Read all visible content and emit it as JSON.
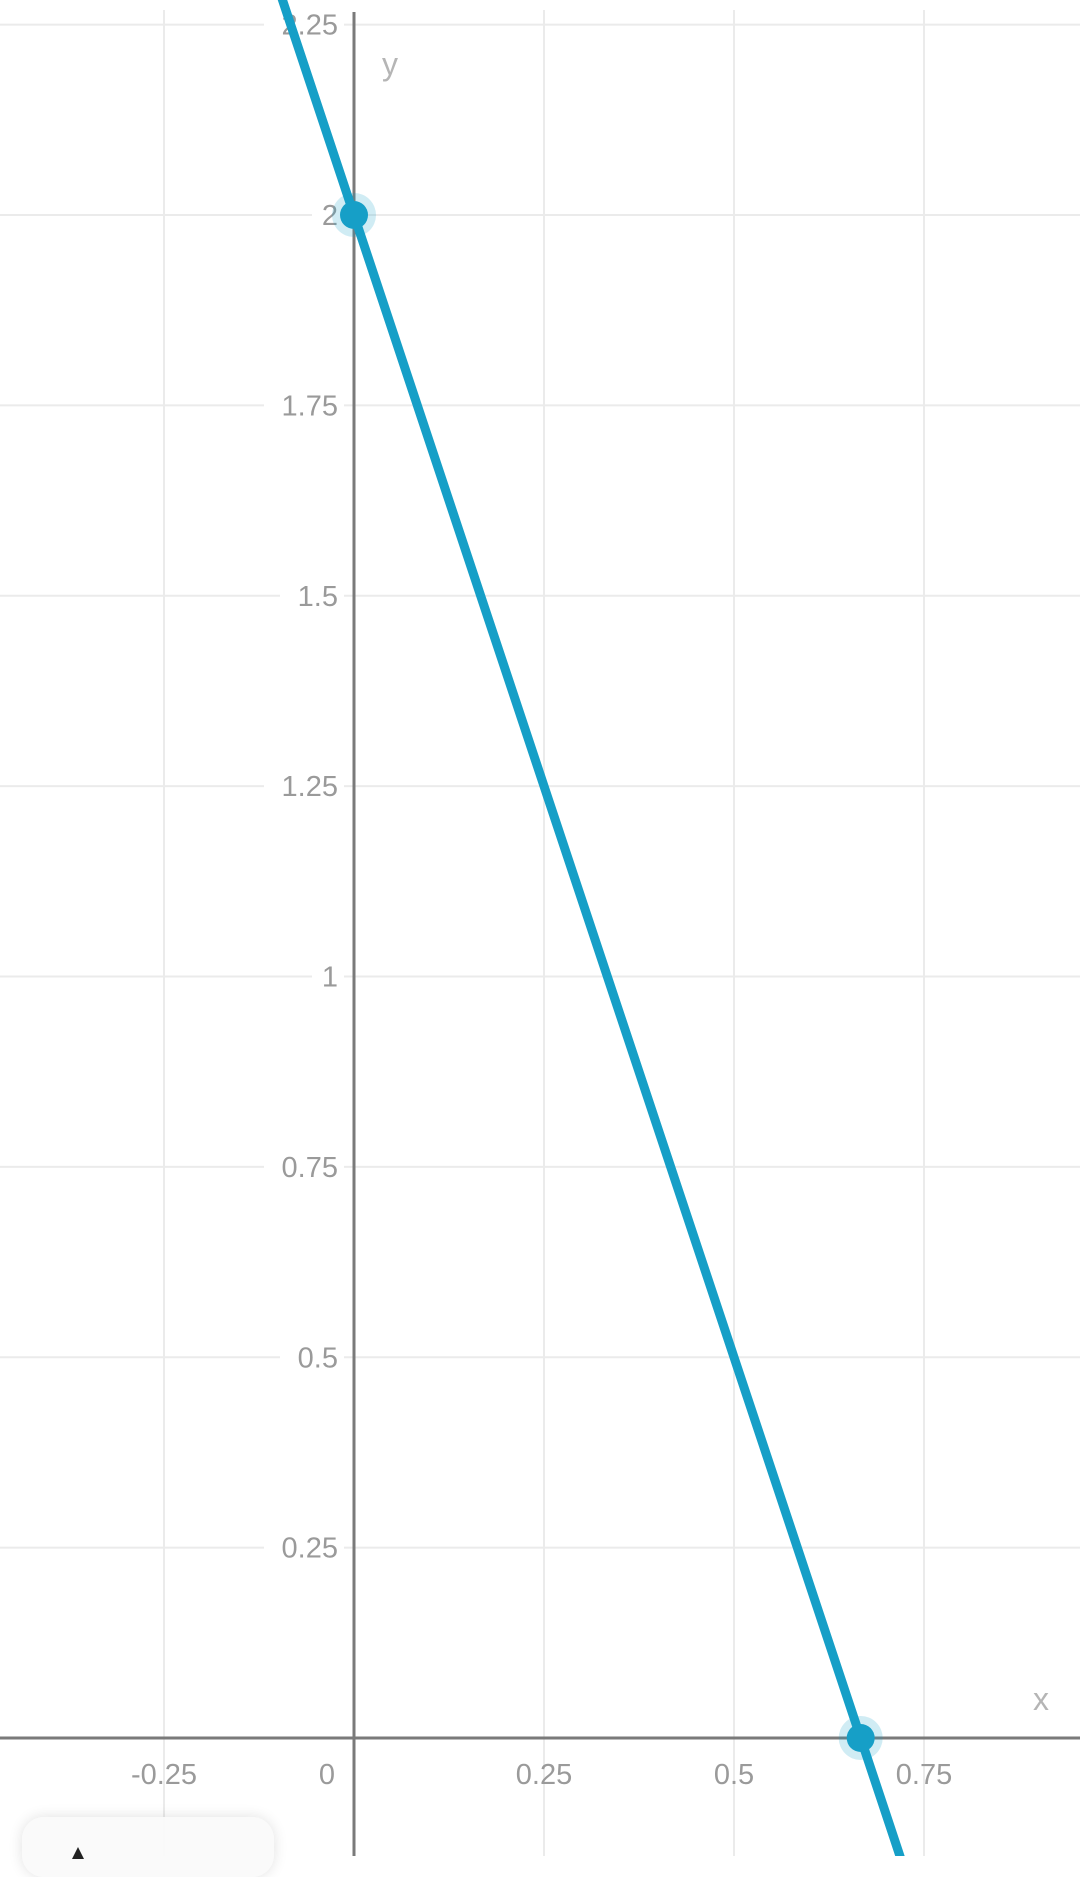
{
  "chart_data": {
    "type": "line",
    "xlabel": "x",
    "ylabel": "y",
    "xlim": [
      -0.45,
      0.97
    ],
    "ylim": [
      -0.15,
      2.28
    ],
    "grid": true,
    "x_ticks": [
      "-0.25",
      "0",
      "0.25",
      "0.5",
      "0.75"
    ],
    "x_tick_values": [
      -0.25,
      0,
      0.25,
      0.5,
      0.75
    ],
    "y_ticks": [
      "0.25",
      "0.5",
      "0.75",
      "1",
      "1.25",
      "1.5",
      "1.75",
      "2",
      "2.25"
    ],
    "y_tick_values": [
      0.25,
      0.5,
      0.75,
      1,
      1.25,
      1.5,
      1.75,
      2,
      2.25
    ],
    "series": [
      {
        "slope": -3,
        "intercept": 2,
        "x_range": [
          -0.1,
          0.75
        ],
        "color": "#169fc7"
      }
    ],
    "points": [
      {
        "x": 0,
        "y": 2
      },
      {
        "x": 0.6667,
        "y": 0
      }
    ]
  },
  "colors": {
    "line": "#169fc7",
    "grid": "#ebebeb",
    "axis": "#7a7a7a"
  }
}
